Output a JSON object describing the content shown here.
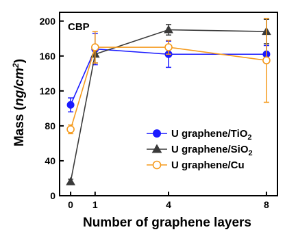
{
  "chart_data": {
    "type": "line",
    "panel_label": "CBP",
    "xlabel": "Number of graphene layers",
    "ylabel_main": "Mass (",
    "ylabel_unit": "ng/cm",
    "ylabel_sup": "2",
    "ylabel_close": ")",
    "x_ticks": [
      0,
      1,
      4,
      8
    ],
    "y_ticks": [
      0,
      40,
      80,
      120,
      160,
      200
    ],
    "xlim": [
      -0.45,
      8.45
    ],
    "ylim": [
      0,
      210
    ],
    "grid": false,
    "legend_position": "lower-right",
    "series": [
      {
        "name": "U graphene/TiO",
        "name_sub": "2",
        "color": "#1a1aff",
        "marker": "circle-filled",
        "x": [
          0,
          1,
          4,
          8
        ],
        "y": [
          104,
          168,
          162,
          162
        ],
        "err": [
          8,
          18,
          15,
          10
        ]
      },
      {
        "name": "U graphene/SiO",
        "name_sub": "2",
        "color": "#3a3a3a",
        "marker": "triangle-filled",
        "x": [
          0,
          1,
          4,
          8
        ],
        "y": [
          16,
          162,
          190,
          188
        ],
        "err": [
          3,
          10,
          6,
          14
        ]
      },
      {
        "name": "U graphene/Cu",
        "name_sub": "",
        "color": "#f59a1c",
        "marker": "circle-open",
        "x": [
          0,
          1,
          4,
          8
        ],
        "y": [
          76,
          170,
          170,
          155
        ],
        "err": [
          5,
          18,
          8,
          48
        ]
      }
    ]
  }
}
